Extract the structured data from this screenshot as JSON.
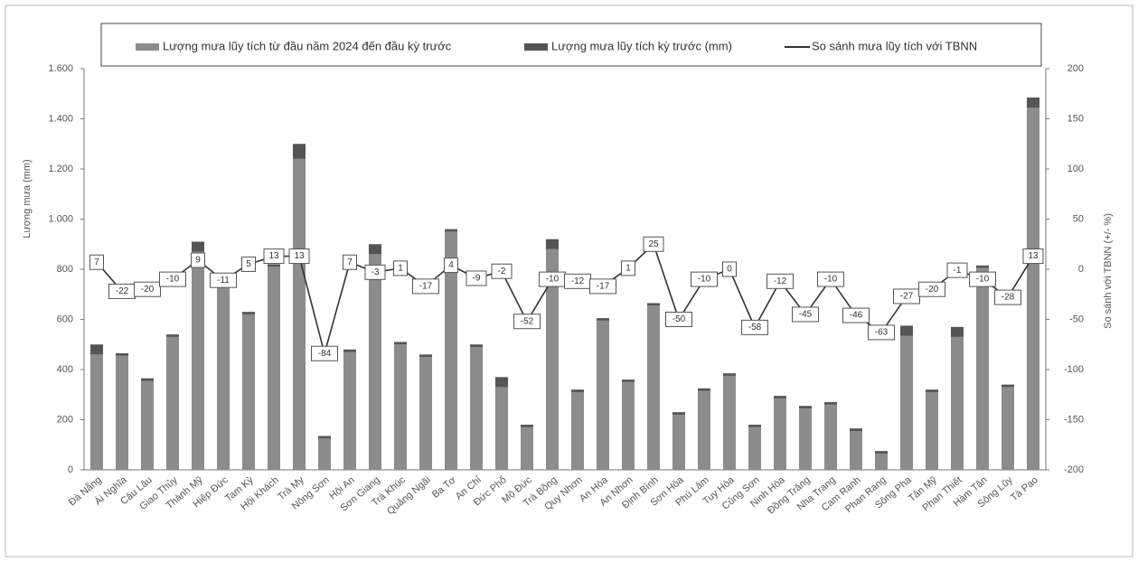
{
  "chart_data": {
    "type": "bar",
    "stacked": true,
    "y_label": "Lượng mưa (mm)",
    "y2_label": "So sánh với TBNN (+/- %)",
    "categories": [
      "Đà Nẵng",
      "Ái Nghĩa",
      "Câu Lâu",
      "Giao Thủy",
      "Thành Mỹ",
      "Hiệp Đức",
      "Tam Kỳ",
      "Hội Khách",
      "Trà My",
      "Nông Sơn",
      "Hội An",
      "Sơn Giang",
      "Trà Khúc",
      "Quảng Ngãi",
      "Ba Tơ",
      "An Chỉ",
      "Đức Phổ",
      "Mộ Đức",
      "Trà Bồng",
      "Quy Nhơn",
      "An Hòa",
      "An Nhơn",
      "Định Bình",
      "Sơn Hòa",
      "Phú Lâm",
      "Tuy Hòa",
      "Củng Sơn",
      "Ninh Hòa",
      "Đồng Trăng",
      "Nha Trang",
      "Cam Ranh",
      "Phan Rang",
      "Sông Pha",
      "Tân Mỹ",
      "Phan Thiết",
      "Hàm Tân",
      "Sông Lũy",
      "Tà Pao"
    ],
    "series": [
      {
        "name": "Lượng mưa lũy tích từ đầu năm 2024 đến đầu kỳ trước",
        "color": "#8c8c8c",
        "values": [
          460,
          455,
          355,
          530,
          870,
          750,
          620,
          810,
          1240,
          125,
          470,
          860,
          500,
          450,
          950,
          490,
          330,
          170,
          880,
          310,
          595,
          350,
          655,
          220,
          315,
          375,
          170,
          285,
          245,
          260,
          155,
          65,
          535,
          310,
          530,
          805,
          330,
          1445
        ]
      },
      {
        "name": "Lượng mưa lũy tích kỳ trước (mm)",
        "color": "#555555",
        "values": [
          40,
          10,
          10,
          10,
          40,
          10,
          10,
          10,
          60,
          10,
          10,
          40,
          10,
          10,
          10,
          10,
          40,
          10,
          40,
          10,
          10,
          10,
          10,
          10,
          10,
          10,
          10,
          10,
          10,
          10,
          10,
          10,
          40,
          10,
          40,
          10,
          10,
          40
        ]
      },
      {
        "name": "So sánh mưa lũy tích với TBNN",
        "type": "line",
        "axis": "y2",
        "color": "#333333",
        "values": [
          7,
          -22,
          -20,
          -10,
          9,
          -11,
          5,
          13,
          13,
          -84,
          7,
          -3,
          1,
          -17,
          4,
          -9,
          -2,
          -52,
          -10,
          -12,
          -17,
          1,
          25,
          -50,
          -10,
          0,
          -58,
          -12,
          -45,
          -10,
          -46,
          -63,
          -27,
          -20,
          -1,
          -10,
          -28,
          13
        ]
      }
    ],
    "ylim": [
      0,
      1600
    ],
    "yticks": [
      0,
      200,
      400,
      600,
      800,
      {
        "value": 1000,
        "label": "1.000"
      },
      {
        "value": 1200,
        "label": "1.200"
      },
      {
        "value": 1400,
        "label": "1.400"
      },
      {
        "value": 1600,
        "label": "1.600"
      }
    ],
    "y2lim": [
      -200,
      200
    ],
    "y2ticks": [
      -200,
      -150,
      -100,
      -50,
      0,
      50,
      100,
      150,
      200
    ]
  }
}
